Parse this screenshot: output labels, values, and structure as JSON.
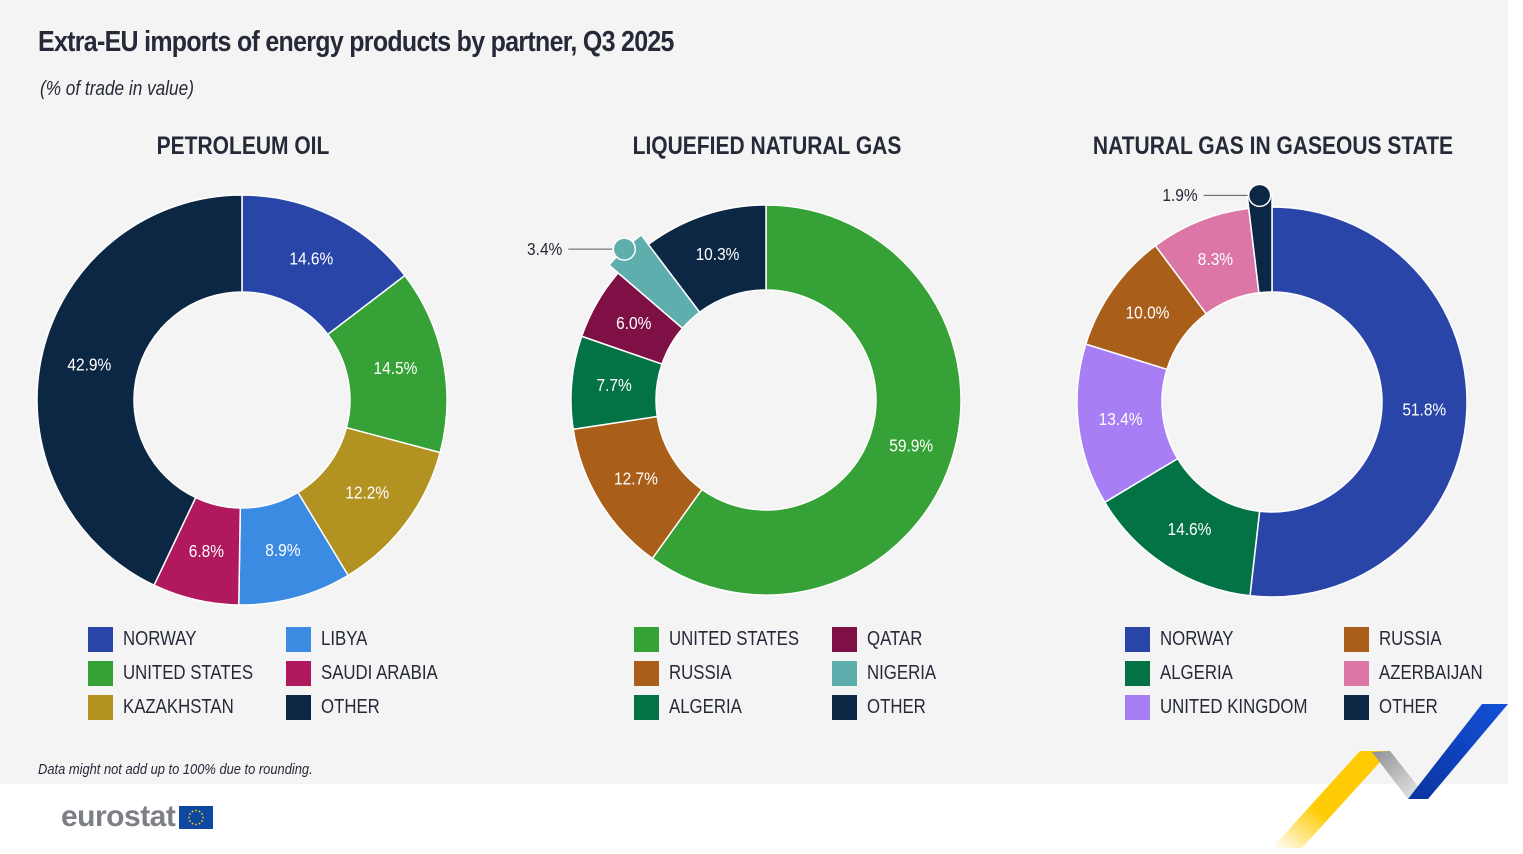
{
  "header": {
    "title": "Extra-EU imports of energy products by partner, Q3 2025",
    "subtitle": "(% of trade in value)"
  },
  "chart_data": [
    {
      "type": "pie",
      "variant": "donut",
      "title": "PETROLEUM OIL",
      "unit": "%",
      "categories": [
        "NORWAY",
        "UNITED STATES",
        "KAZAKHSTAN",
        "LIBYA",
        "SAUDI ARABIA",
        "OTHER"
      ],
      "values": [
        14.6,
        14.5,
        12.2,
        8.9,
        6.8,
        42.9
      ],
      "labels": [
        "14.6%",
        "14.5%",
        "12.2%",
        "8.9%",
        "6.8%",
        "42.9%"
      ],
      "colors": [
        "#2a45a8",
        "#35a136",
        "#b29322",
        "#3b8be2",
        "#b0195d",
        "#0c2744"
      ],
      "legend": [
        {
          "label": "NORWAY",
          "color": "#2a45a8"
        },
        {
          "label": "LIBYA",
          "color": "#3b8be2"
        },
        {
          "label": "UNITED STATES",
          "color": "#35a136"
        },
        {
          "label": "SAUDI ARABIA",
          "color": "#b0195d"
        },
        {
          "label": "KAZAKHSTAN",
          "color": "#b29322"
        },
        {
          "label": "OTHER",
          "color": "#0c2744"
        }
      ],
      "legend_position": "bottom"
    },
    {
      "type": "pie",
      "variant": "donut",
      "title": "LIQUEFIED NATURAL GAS",
      "unit": "%",
      "categories": [
        "UNITED STATES",
        "RUSSIA",
        "ALGERIA",
        "QATAR",
        "NIGERIA",
        "OTHER"
      ],
      "values": [
        59.9,
        12.7,
        7.7,
        6.0,
        3.4,
        10.3
      ],
      "labels": [
        "59.9%",
        "12.7%",
        "7.7%",
        "6.0%",
        "3.4%",
        "10.3%"
      ],
      "colors": [
        "#35a136",
        "#a95f1a",
        "#037244",
        "#7f1045",
        "#5faeae",
        "#0c2744"
      ],
      "callouts": [
        "NIGERIA"
      ],
      "legend": [
        {
          "label": "UNITED STATES",
          "color": "#35a136"
        },
        {
          "label": "QATAR",
          "color": "#7f1045"
        },
        {
          "label": "RUSSIA",
          "color": "#a95f1a"
        },
        {
          "label": "NIGERIA",
          "color": "#5faeae"
        },
        {
          "label": "ALGERIA",
          "color": "#037244"
        },
        {
          "label": "OTHER",
          "color": "#0c2744"
        }
      ],
      "legend_position": "bottom"
    },
    {
      "type": "pie",
      "variant": "donut",
      "title": "NATURAL GAS IN GASEOUS STATE",
      "unit": "%",
      "categories": [
        "NORWAY",
        "ALGERIA",
        "UNITED KINGDOM",
        "RUSSIA",
        "AZERBAIJAN",
        "OTHER"
      ],
      "values": [
        51.8,
        14.6,
        13.4,
        10.0,
        8.3,
        1.9
      ],
      "labels": [
        "51.8%",
        "14.6%",
        "13.4%",
        "10.0%",
        "8.3%",
        "1.9%"
      ],
      "colors": [
        "#2a45a8",
        "#037244",
        "#a87ef5",
        "#a95f1a",
        "#dc76a6",
        "#0c2744"
      ],
      "callouts": [
        "OTHER"
      ],
      "legend": [
        {
          "label": "NORWAY",
          "color": "#2a45a8"
        },
        {
          "label": "RUSSIA",
          "color": "#a95f1a"
        },
        {
          "label": "ALGERIA",
          "color": "#037244"
        },
        {
          "label": "AZERBAIJAN",
          "color": "#dc76a6"
        },
        {
          "label": "UNITED KINGDOM",
          "color": "#a87ef5"
        },
        {
          "label": "OTHER",
          "color": "#0c2744"
        }
      ],
      "legend_position": "bottom"
    }
  ],
  "footer": {
    "note": "Data might not add up to 100% due to rounding.",
    "logo_text": "eurostat",
    "flag_color": "#0e47a1",
    "star_color": "#ffcc00"
  },
  "decoration": {
    "ribbon_colors": [
      "#ffcb05",
      "#a7a9ac",
      "#0f47c7"
    ]
  }
}
